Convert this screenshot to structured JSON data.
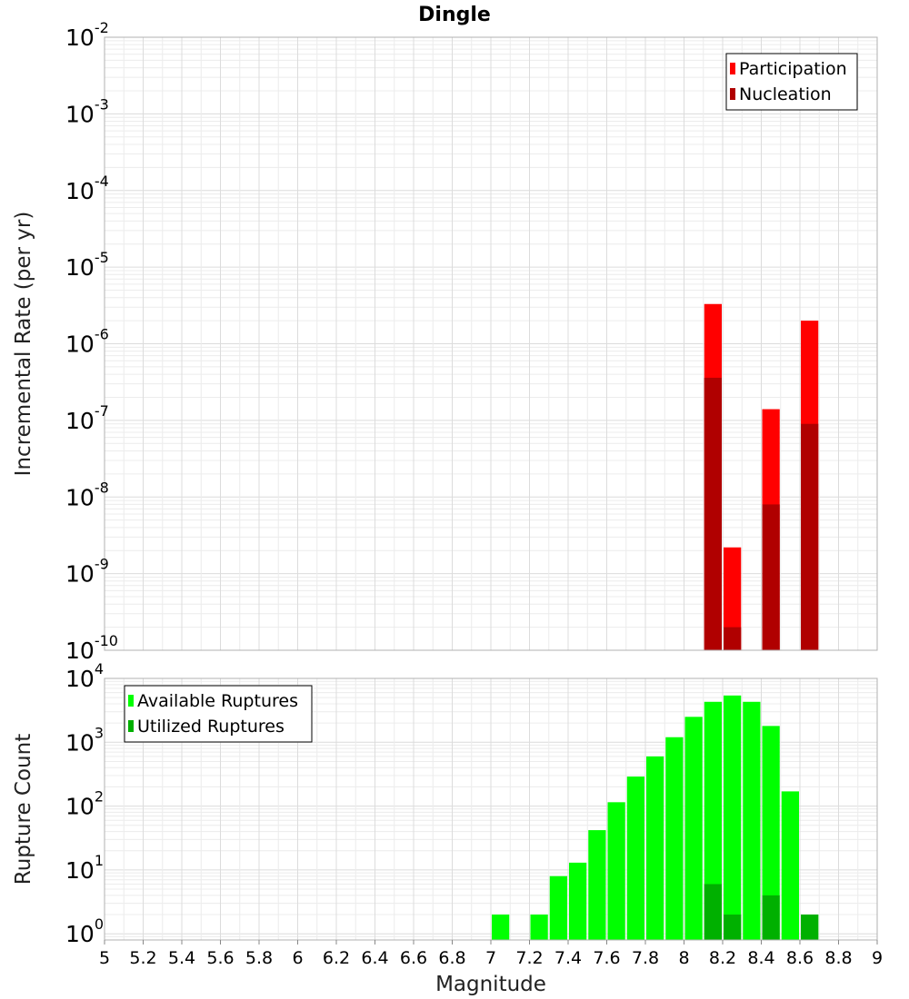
{
  "chart_data": [
    {
      "type": "bar",
      "title": "Dingle",
      "xlabel": "",
      "ylabel": "Incremental Rate (per yr)",
      "yscale": "log",
      "ylim": [
        1e-10,
        0.01
      ],
      "xlim": [
        5,
        9
      ],
      "ytick_exponents": [
        "-10",
        "-9",
        "-8",
        "-7",
        "-6",
        "-5",
        "-4",
        "-3",
        "-2"
      ],
      "legend": {
        "position": "top-right",
        "entries": [
          "Participation",
          "Nucleation"
        ]
      },
      "colors": {
        "Participation": "#ff0000",
        "Nucleation": "#b00000"
      },
      "series": [
        {
          "name": "Participation",
          "x": [
            8.15,
            8.25,
            8.45,
            8.65
          ],
          "values": [
            3.3e-06,
            2.2e-09,
            1.4e-07,
            2e-06
          ]
        },
        {
          "name": "Nucleation",
          "x": [
            8.15,
            8.25,
            8.45,
            8.65
          ],
          "values": [
            3.6e-07,
            2e-10,
            8e-09,
            9e-08
          ]
        }
      ]
    },
    {
      "type": "bar",
      "title": "",
      "xlabel": "Magnitude",
      "ylabel": "Rupture Count",
      "yscale": "log",
      "ylim": [
        0.8,
        10000
      ],
      "xlim": [
        5,
        9
      ],
      "ytick_exponents": [
        "0",
        "1",
        "2",
        "3",
        "4"
      ],
      "xticks": [
        "5",
        "5.2",
        "5.4",
        "5.6",
        "5.8",
        "6",
        "6.2",
        "6.4",
        "6.6",
        "6.8",
        "7",
        "7.2",
        "7.4",
        "7.6",
        "7.8",
        "8",
        "8.2",
        "8.4",
        "8.6",
        "8.8",
        "9"
      ],
      "legend": {
        "position": "top-left",
        "entries": [
          "Available Ruptures",
          "Utilized Ruptures"
        ]
      },
      "colors": {
        "Available Ruptures": "#00ff00",
        "Utilized Ruptures": "#00b000"
      },
      "series": [
        {
          "name": "Available Ruptures",
          "x": [
            7.05,
            7.25,
            7.35,
            7.45,
            7.55,
            7.65,
            7.75,
            7.85,
            7.95,
            8.05,
            8.15,
            8.25,
            8.35,
            8.45,
            8.55,
            8.65
          ],
          "values": [
            2,
            2,
            8,
            13,
            42,
            115,
            290,
            600,
            1200,
            2500,
            4300,
            5400,
            4300,
            1800,
            170,
            2
          ]
        },
        {
          "name": "Utilized Ruptures",
          "x": [
            8.15,
            8.25,
            8.45,
            8.65
          ],
          "values": [
            6,
            2,
            4,
            2
          ]
        }
      ]
    }
  ]
}
